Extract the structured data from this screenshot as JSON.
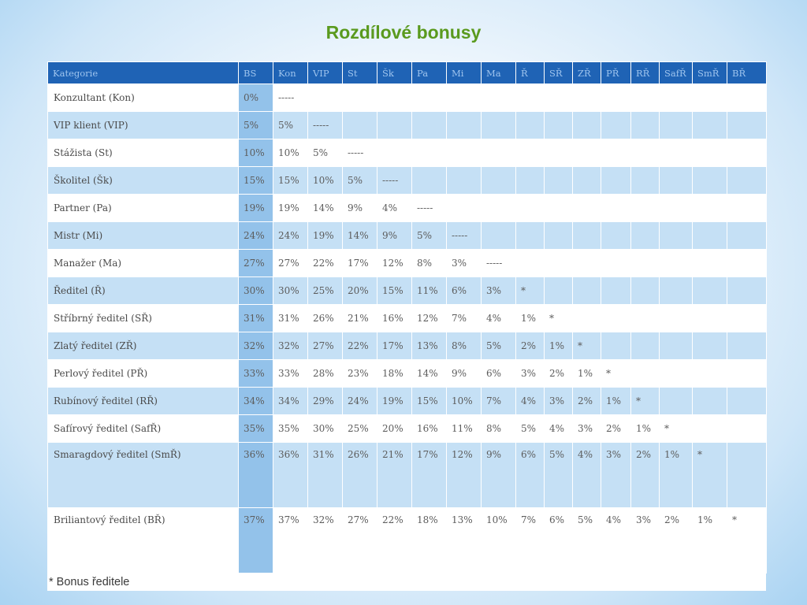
{
  "title": "Rozdílové bonusy",
  "table": {
    "headers": [
      "Kategorie",
      "BS",
      "Kon",
      "VIP",
      "St",
      "Šk",
      "Pa",
      "Mi",
      "Ma",
      "Ř",
      "SŘ",
      "ZŘ",
      "PŘ",
      "RŘ",
      "SafŘ",
      "SmŘ",
      "BŘ"
    ],
    "rows": [
      [
        "Konzultant (Kon)",
        "0%",
        "-----",
        "",
        "",
        "",
        "",
        "",
        "",
        "",
        "",
        "",
        "",
        "",
        "",
        "",
        ""
      ],
      [
        "VIP klient (VIP)",
        "5%",
        "5%",
        "-----",
        "",
        "",
        "",
        "",
        "",
        "",
        "",
        "",
        "",
        "",
        "",
        "",
        ""
      ],
      [
        "Stážista (St)",
        "10%",
        "10%",
        "5%",
        "-----",
        "",
        "",
        "",
        "",
        "",
        "",
        "",
        "",
        "",
        "",
        "",
        ""
      ],
      [
        "Školitel (Šk)",
        "15%",
        "15%",
        "10%",
        "5%",
        "-----",
        "",
        "",
        "",
        "",
        "",
        "",
        "",
        "",
        "",
        "",
        ""
      ],
      [
        "Partner (Pa)",
        "19%",
        "19%",
        "14%",
        "9%",
        "4%",
        "-----",
        "",
        "",
        "",
        "",
        "",
        "",
        "",
        "",
        "",
        ""
      ],
      [
        "Mistr (Mi)",
        "24%",
        "24%",
        "19%",
        "14%",
        "9%",
        "5%",
        "-----",
        "",
        "",
        "",
        "",
        "",
        "",
        "",
        "",
        ""
      ],
      [
        "Manažer (Ma)",
        "27%",
        "27%",
        "22%",
        "17%",
        "12%",
        "8%",
        "3%",
        "-----",
        "",
        "",
        "",
        "",
        "",
        "",
        "",
        ""
      ],
      [
        "Ředitel (Ř)",
        "30%",
        "30%",
        "25%",
        "20%",
        "15%",
        "11%",
        "6%",
        "3%",
        "*",
        "",
        "",
        "",
        "",
        "",
        "",
        ""
      ],
      [
        "Stříbrný ředitel (SŘ)",
        "31%",
        "31%",
        "26%",
        "21%",
        "16%",
        "12%",
        "7%",
        "4%",
        "1%",
        "*",
        "",
        "",
        "",
        "",
        "",
        ""
      ],
      [
        "Zlatý ředitel (ZŘ)",
        "32%",
        "32%",
        "27%",
        "22%",
        "17%",
        "13%",
        "8%",
        "5%",
        "2%",
        "1%",
        "*",
        "",
        "",
        "",
        "",
        ""
      ],
      [
        "Perlový ředitel (PŘ)",
        "33%",
        "33%",
        "28%",
        "23%",
        "18%",
        "14%",
        "9%",
        "6%",
        "3%",
        "2%",
        "1%",
        "*",
        "",
        "",
        "",
        ""
      ],
      [
        "Rubínový ředitel (RŘ)",
        "34%",
        "34%",
        "29%",
        "24%",
        "19%",
        "15%",
        "10%",
        "7%",
        "4%",
        "3%",
        "2%",
        "1%",
        "*",
        "",
        "",
        ""
      ],
      [
        "Safírový ředitel (SafŘ)",
        "35%",
        "35%",
        "30%",
        "25%",
        "20%",
        "16%",
        "11%",
        "8%",
        "5%",
        "4%",
        "3%",
        "2%",
        "1%",
        "*",
        "",
        ""
      ],
      [
        "Smaragdový ředitel (SmŘ)",
        "36%",
        "36%",
        "31%",
        "26%",
        "21%",
        "17%",
        "12%",
        "9%",
        "6%",
        "5%",
        "4%",
        "3%",
        "2%",
        "1%",
        "*",
        ""
      ],
      [
        "Briliantový ředitel (BŘ)",
        "37%",
        "37%",
        "32%",
        "27%",
        "22%",
        "18%",
        "13%",
        "10%",
        "7%",
        "6%",
        "5%",
        "4%",
        "3%",
        "2%",
        "1%",
        "*"
      ]
    ]
  },
  "footnote": "* Bonus ředitele"
}
